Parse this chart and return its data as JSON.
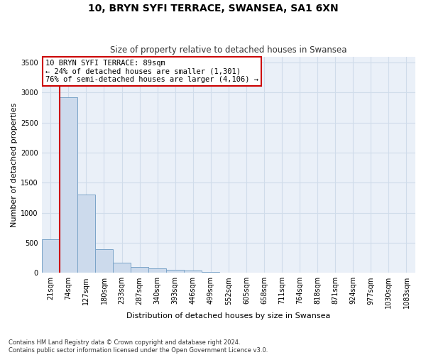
{
  "title": "10, BRYN SYFI TERRACE, SWANSEA, SA1 6XN",
  "subtitle": "Size of property relative to detached houses in Swansea",
  "xlabel": "Distribution of detached houses by size in Swansea",
  "ylabel": "Number of detached properties",
  "footnote1": "Contains HM Land Registry data © Crown copyright and database right 2024.",
  "footnote2": "Contains public sector information licensed under the Open Government Licence v3.0.",
  "bar_color": "#ccdaec",
  "bar_edge_color": "#7ba4c8",
  "grid_color": "#d0dcea",
  "annotation_border_color": "#cc0000",
  "vline_color": "#cc0000",
  "background_color": "#eaf0f8",
  "categories": [
    "21sqm",
    "74sqm",
    "127sqm",
    "180sqm",
    "233sqm",
    "287sqm",
    "340sqm",
    "393sqm",
    "446sqm",
    "499sqm",
    "552sqm",
    "605sqm",
    "658sqm",
    "711sqm",
    "764sqm",
    "818sqm",
    "871sqm",
    "924sqm",
    "977sqm",
    "1030sqm",
    "1083sqm"
  ],
  "values": [
    560,
    2920,
    1300,
    395,
    165,
    100,
    70,
    55,
    45,
    10,
    5,
    3,
    2,
    2,
    1,
    1,
    1,
    0,
    0,
    0,
    0
  ],
  "vline_x": 0.5,
  "annotation_text_line1": "10 BRYN SYFI TERRACE: 89sqm",
  "annotation_text_line2": "← 24% of detached houses are smaller (1,301)",
  "annotation_text_line3": "76% of semi-detached houses are larger (4,106) →",
  "ylim_max": 3600,
  "yticks": [
    0,
    500,
    1000,
    1500,
    2000,
    2500,
    3000,
    3500
  ]
}
